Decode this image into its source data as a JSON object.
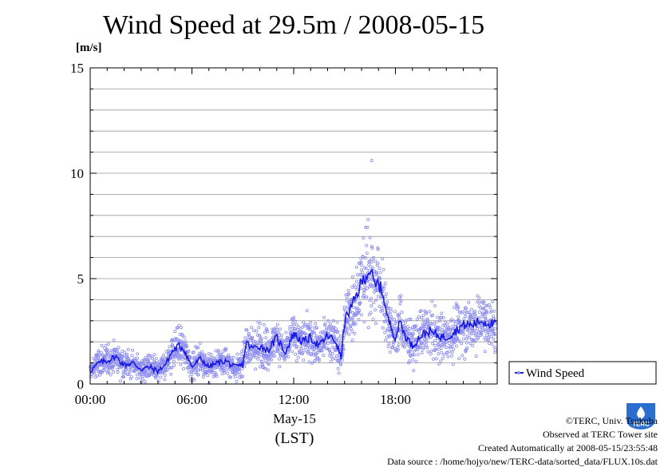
{
  "chart_data": {
    "type": "scatter",
    "title": "Wind Speed at 29.5m / 2008-05-15",
    "ylabel": "[m/s]",
    "xlabel": "May-15",
    "xlabel2": "(LST)",
    "ylim": [
      0,
      15
    ],
    "xlim_hours": [
      0,
      24
    ],
    "yticks": [
      "0",
      "5",
      "10",
      "15"
    ],
    "xticks": [
      "00:00",
      "06:00",
      "12:00",
      "18:00"
    ],
    "grid": true,
    "legend": {
      "label": "Wind Speed",
      "placement": "lower-right outside"
    },
    "colors": {
      "scatter": "#8c8cf0",
      "line": "#1a1ae6"
    },
    "series": [
      {
        "name": "Wind Speed",
        "x_hours": [
          0.0,
          0.5,
          1.0,
          1.5,
          2.0,
          2.5,
          3.0,
          3.5,
          4.0,
          4.5,
          4.8,
          5.2,
          5.5,
          6.0,
          6.5,
          7.0,
          7.5,
          8.0,
          8.5,
          9.0,
          9.2,
          9.5,
          10.0,
          10.5,
          11.0,
          11.5,
          12.0,
          12.5,
          13.0,
          13.5,
          14.0,
          14.5,
          14.8,
          15.0,
          15.5,
          16.0,
          16.3,
          16.5,
          16.8,
          17.0,
          17.3,
          17.5,
          18.0,
          18.3,
          18.5,
          19.0,
          19.5,
          20.0,
          20.5,
          21.0,
          21.5,
          22.0,
          22.5,
          23.0,
          23.5,
          23.9
        ],
        "mean": [
          0.6,
          1.0,
          1.1,
          1.3,
          0.9,
          1.0,
          0.7,
          0.8,
          0.6,
          1.0,
          1.5,
          1.8,
          1.7,
          0.8,
          1.2,
          0.8,
          1.0,
          1.1,
          0.8,
          0.9,
          2.0,
          1.7,
          1.8,
          1.6,
          2.2,
          1.5,
          2.4,
          2.0,
          2.2,
          1.8,
          2.3,
          2.0,
          1.2,
          3.0,
          3.8,
          4.8,
          5.2,
          5.4,
          4.6,
          4.8,
          4.2,
          3.2,
          2.2,
          3.0,
          2.4,
          1.8,
          2.3,
          2.5,
          2.3,
          2.2,
          2.5,
          2.8,
          2.8,
          3.0,
          2.9,
          2.8
        ]
      }
    ],
    "outlier_max": {
      "x_hours": 16.6,
      "value": 10.6
    }
  },
  "credits": {
    "copyright": "©TERC, Univ. Tsukuba",
    "site": "Observed at TERC Tower site",
    "created": "Created Automatically at 2008-05-15/23:55:48",
    "source": "Data source : /home/hojyo/new/TERC-data/sorted_data/FLUX.10s.dat"
  },
  "logo": {
    "text": "TERC"
  }
}
